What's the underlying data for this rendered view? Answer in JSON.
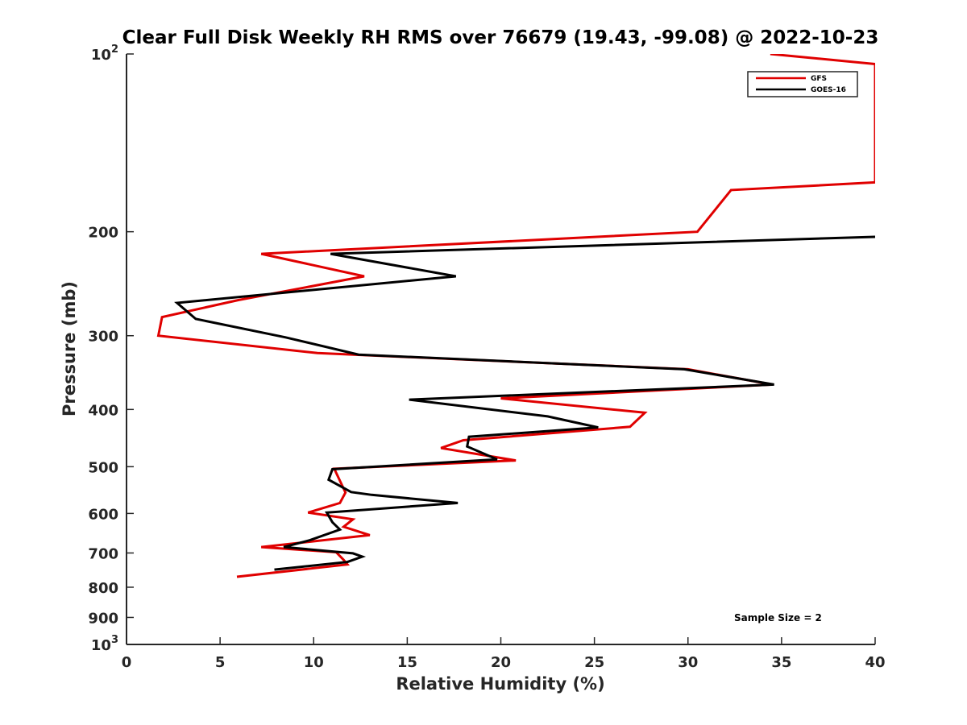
{
  "chart_data": {
    "type": "line",
    "title": "Clear Full Disk Weekly RH RMS over 76679 (19.43, -99.08) @ 2022-10-23",
    "xlabel": "Relative Humidity (%)",
    "ylabel": "Pressure (mb)",
    "xlim": [
      0,
      40
    ],
    "ylim": [
      100,
      1000
    ],
    "y_scale": "log",
    "y_reversed": true,
    "x_ticks": [
      "0",
      "5",
      "10",
      "15",
      "20",
      "25",
      "30",
      "35",
      "40"
    ],
    "y_ticks": [
      {
        "value": 100,
        "label": "10",
        "sup": "2"
      },
      {
        "value": 200,
        "label": "200"
      },
      {
        "value": 300,
        "label": "300"
      },
      {
        "value": 400,
        "label": "400"
      },
      {
        "value": 500,
        "label": "500"
      },
      {
        "value": 600,
        "label": "600"
      },
      {
        "value": 700,
        "label": "700"
      },
      {
        "value": 800,
        "label": "800"
      },
      {
        "value": 900,
        "label": "900"
      },
      {
        "value": 1000,
        "label": "10",
        "sup": "3"
      }
    ],
    "grid": false,
    "legend_position": "top-right",
    "annotation": "Sample Size = 2",
    "series": [
      {
        "name": "GFS",
        "color": "#e00000",
        "points": [
          [
            34.4,
            100
          ],
          [
            40.0,
            104
          ],
          [
            40.0,
            165
          ],
          [
            32.3,
            170
          ],
          [
            30.5,
            200
          ],
          [
            7.2,
            218
          ],
          [
            12.7,
            238
          ],
          [
            6.0,
            261
          ],
          [
            1.9,
            279
          ],
          [
            1.7,
            300
          ],
          [
            10.2,
            321
          ],
          [
            30.0,
            342
          ],
          [
            34.5,
            363
          ],
          [
            20.0,
            383
          ],
          [
            27.7,
            405
          ],
          [
            26.9,
            428
          ],
          [
            18.0,
            451
          ],
          [
            16.8,
            465
          ],
          [
            20.8,
            488
          ],
          [
            11.1,
            504
          ],
          [
            11.7,
            553
          ],
          [
            11.4,
            576
          ],
          [
            9.7,
            598
          ],
          [
            12.1,
            614
          ],
          [
            11.6,
            632
          ],
          [
            13.0,
            653
          ],
          [
            7.2,
            684
          ],
          [
            11.2,
            698
          ],
          [
            11.6,
            719
          ],
          [
            11.8,
            732
          ],
          [
            5.9,
            768
          ]
        ]
      },
      {
        "name": "GOES-16",
        "color": "#000000",
        "points": [
          [
            40.0,
            204
          ],
          [
            10.9,
            218
          ],
          [
            17.6,
            238
          ],
          [
            2.7,
            264
          ],
          [
            3.7,
            281
          ],
          [
            8.5,
            302
          ],
          [
            12.4,
            323
          ],
          [
            29.8,
            342
          ],
          [
            34.6,
            363
          ],
          [
            15.1,
            385
          ],
          [
            22.5,
            411
          ],
          [
            25.2,
            429
          ],
          [
            18.3,
            445
          ],
          [
            18.2,
            462
          ],
          [
            19.8,
            486
          ],
          [
            11.0,
            505
          ],
          [
            10.8,
            526
          ],
          [
            12.0,
            552
          ],
          [
            13.1,
            558
          ],
          [
            17.7,
            576
          ],
          [
            10.7,
            598
          ],
          [
            11.0,
            621
          ],
          [
            11.4,
            639
          ],
          [
            9.8,
            666
          ],
          [
            8.4,
            684
          ],
          [
            12.1,
            701
          ],
          [
            12.6,
            710
          ],
          [
            11.8,
            725
          ],
          [
            7.9,
            747
          ]
        ]
      }
    ]
  }
}
